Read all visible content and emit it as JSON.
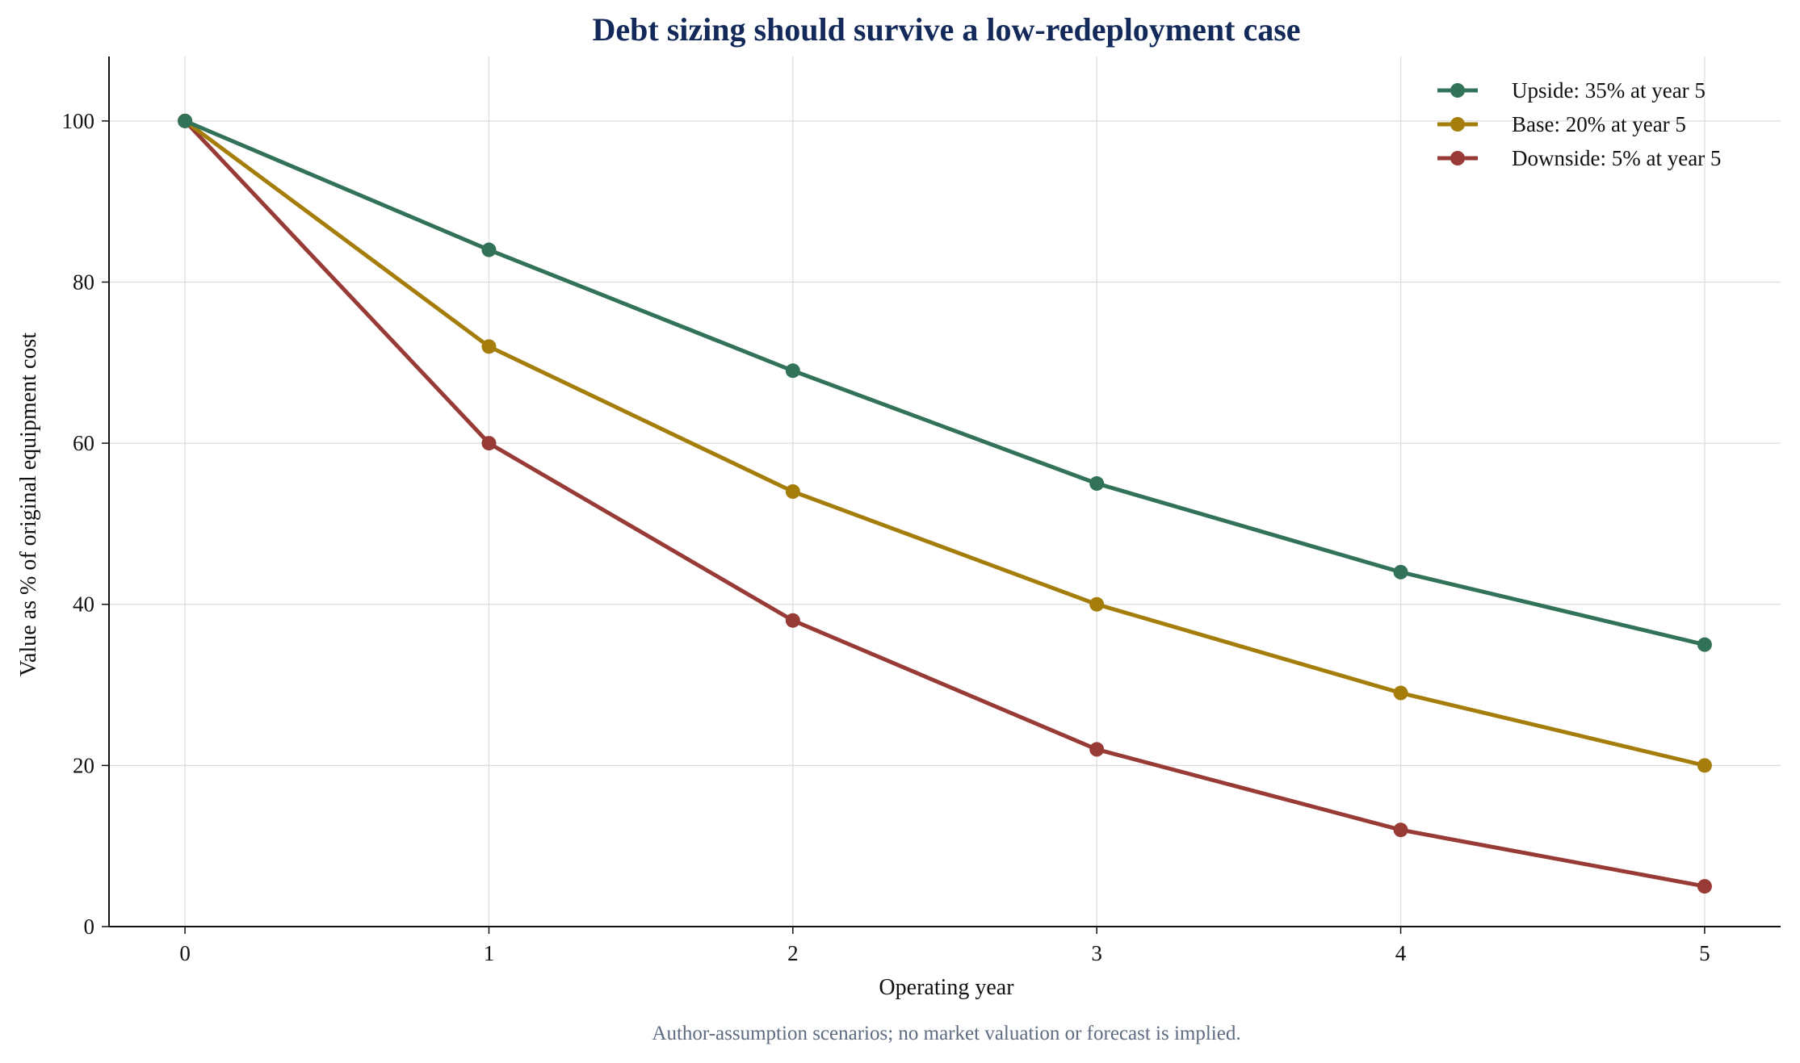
{
  "chart_data": {
    "type": "line",
    "title": "Debt sizing should survive a low-redeployment case",
    "xlabel": "Operating year",
    "ylabel": "Value as % of original equipment cost",
    "note": "Author-assumption scenarios; no market valuation or forecast is implied.",
    "x": [
      0,
      1,
      2,
      3,
      4,
      5
    ],
    "x_ticks": [
      "0",
      "1",
      "2",
      "3",
      "4",
      "5"
    ],
    "y_ticks": [
      "0",
      "20",
      "40",
      "60",
      "80",
      "100"
    ],
    "xlim": [
      -0.25,
      5.25
    ],
    "ylim": [
      0,
      108
    ],
    "grid": true,
    "legend_position": "top-right",
    "series": [
      {
        "name": "Upside: 35% at year 5",
        "color": "#327259",
        "values": [
          100,
          84,
          69,
          55,
          44,
          35
        ]
      },
      {
        "name": "Base: 20% at year 5",
        "color": "#a47d0a",
        "values": [
          100,
          72,
          54,
          40,
          29,
          20
        ]
      },
      {
        "name": "Downside: 5% at year 5",
        "color": "#983a35",
        "values": [
          100,
          60,
          38,
          22,
          12,
          5
        ]
      }
    ]
  }
}
